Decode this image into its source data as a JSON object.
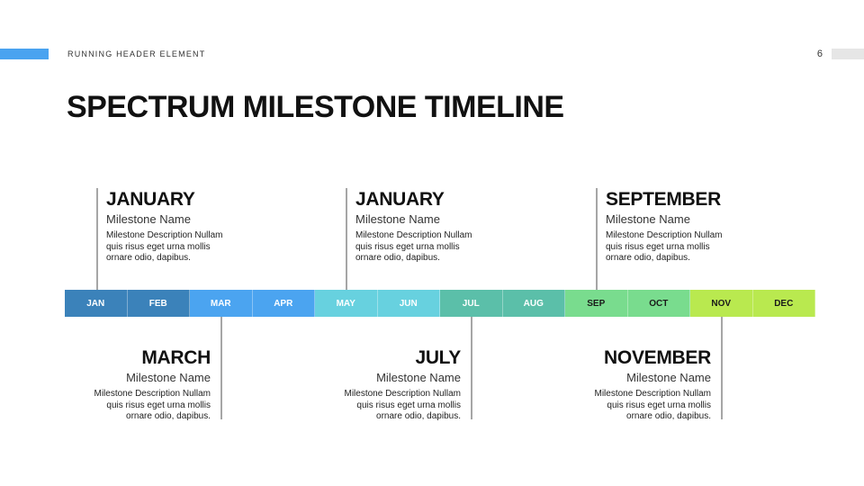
{
  "header": {
    "running_text": "RUNNING HEADER ELEMENT",
    "page_number": "6"
  },
  "title": "SPECTRUM MILESTONE TIMELINE",
  "months": [
    {
      "label": "JAN",
      "color": "#3b82ba",
      "text": "#ffffff"
    },
    {
      "label": "FEB",
      "color": "#3b82ba",
      "text": "#ffffff"
    },
    {
      "label": "MAR",
      "color": "#4ba4f0",
      "text": "#ffffff"
    },
    {
      "label": "APR",
      "color": "#4ba4f0",
      "text": "#ffffff"
    },
    {
      "label": "MAY",
      "color": "#67d1df",
      "text": "#ffffff"
    },
    {
      "label": "JUN",
      "color": "#67d1df",
      "text": "#ffffff"
    },
    {
      "label": "JUL",
      "color": "#5bbfa9",
      "text": "#ffffff"
    },
    {
      "label": "AUG",
      "color": "#5bbfa9",
      "text": "#ffffff"
    },
    {
      "label": "SEP",
      "color": "#79dc8e",
      "text": "#1a1a1a"
    },
    {
      "label": "OCT",
      "color": "#79dc8e",
      "text": "#1a1a1a"
    },
    {
      "label": "NOV",
      "color": "#b9e94f",
      "text": "#1a1a1a"
    },
    {
      "label": "DEC",
      "color": "#b9e94f",
      "text": "#1a1a1a"
    }
  ],
  "milestones_top": [
    {
      "month": "JANUARY",
      "name": "Milestone Name",
      "desc": "Milestone Description Nullam quis risus eget urna mollis ornare odio, dapibus."
    },
    {
      "month": "JANUARY",
      "name": "Milestone Name",
      "desc": "Milestone Description Nullam quis risus eget urna mollis ornare odio, dapibus."
    },
    {
      "month": "SEPTEMBER",
      "name": "Milestone Name",
      "desc": "Milestone Description Nullam quis risus eget urna mollis ornare odio, dapibus."
    }
  ],
  "milestones_bottom": [
    {
      "month": "MARCH",
      "name": "Milestone Name",
      "desc": "Milestone Description Nullam quis risus eget urna mollis ornare odio, dapibus."
    },
    {
      "month": "JULY",
      "name": "Milestone Name",
      "desc": "Milestone Description Nullam quis risus eget urna mollis ornare odio, dapibus."
    },
    {
      "month": "NOVEMBER",
      "name": "Milestone Name",
      "desc": "Milestone Description Nullam quis risus eget urna mollis ornare odio, dapibus."
    }
  ]
}
